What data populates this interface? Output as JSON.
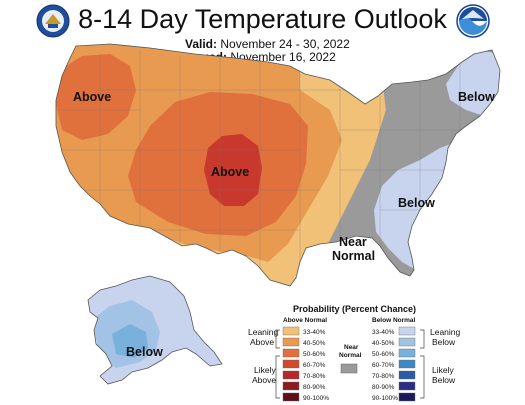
{
  "header": {
    "title": "8-14 Day Temperature Outlook",
    "valid_label": "Valid:",
    "valid_value": "November 24 - 30, 2022",
    "issued_label": "Issued:",
    "issued_value": "November 16, 2022"
  },
  "logos": {
    "left": "doc-seal-icon",
    "right": "noaa-logo-icon"
  },
  "map_labels": {
    "above_nw": "Above",
    "above_central": "Above",
    "below_ne": "Below",
    "below_se": "Below",
    "near_normal_1": "Near",
    "near_normal_2": "Normal",
    "below_alaska": "Below"
  },
  "legend": {
    "title": "Probability (Percent Chance)",
    "above_header": "Above Normal",
    "below_header": "Below Normal",
    "near_header_1": "Near",
    "near_header_2": "Normal",
    "leaning_above_1": "Leaning",
    "leaning_above_2": "Above",
    "likely_above_1": "Likely",
    "likely_above_2": "Above",
    "leaning_below_1": "Leaning",
    "leaning_below_2": "Below",
    "likely_below_1": "Likely",
    "likely_below_2": "Below",
    "above_bins": [
      {
        "label": "33-40%",
        "color": "#f2c178"
      },
      {
        "label": "40-50%",
        "color": "#e89a50"
      },
      {
        "label": "50-60%",
        "color": "#e0703c"
      },
      {
        "label": "60-70%",
        "color": "#d04a2c"
      },
      {
        "label": "70-80%",
        "color": "#b8282a"
      },
      {
        "label": "80-90%",
        "color": "#8c1c22"
      },
      {
        "label": "90-100%",
        "color": "#5e1015"
      }
    ],
    "below_bins": [
      {
        "label": "33-40%",
        "color": "#c8d4ee"
      },
      {
        "label": "40-50%",
        "color": "#a2c2e6"
      },
      {
        "label": "50-60%",
        "color": "#7ab0dc"
      },
      {
        "label": "60-70%",
        "color": "#3f88c6"
      },
      {
        "label": "70-80%",
        "color": "#2a5aa8"
      },
      {
        "label": "80-90%",
        "color": "#2a2f86"
      },
      {
        "label": "90-100%",
        "color": "#1c1a5a"
      }
    ],
    "near_color": "#9a9a9a"
  }
}
